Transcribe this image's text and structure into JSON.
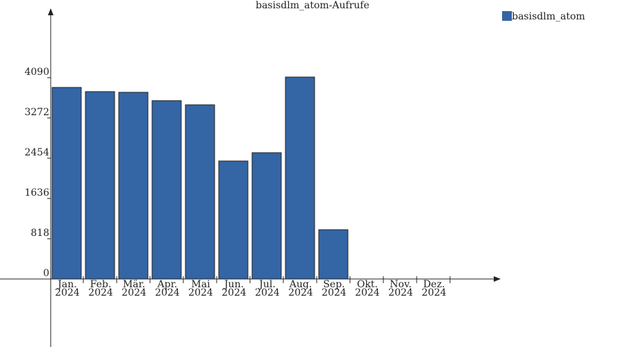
{
  "chart_data": {
    "type": "bar",
    "title": "basisdlm_atom-Aufrufe",
    "categories": [
      "Jan. 2024",
      "Feb. 2024",
      "Mär. 2024",
      "Apr. 2024",
      "Mai 2024",
      "Jun. 2024",
      "Jul. 2024",
      "Aug. 2024",
      "Sep. 2024",
      "Okt. 2024",
      "Nov. 2024",
      "Dez. 2024"
    ],
    "series": [
      {
        "name": "basisdlm_atom",
        "color": "#3465a4",
        "values": [
          3892,
          3807,
          3793,
          3624,
          3539,
          2397,
          2566,
          4103,
          1001,
          0,
          0,
          0
        ]
      }
    ],
    "ylim": [
      -1382,
      5457
    ],
    "yticks": [
      0,
      818,
      1636,
      2454,
      3272,
      4090
    ],
    "legend": "top-right"
  }
}
